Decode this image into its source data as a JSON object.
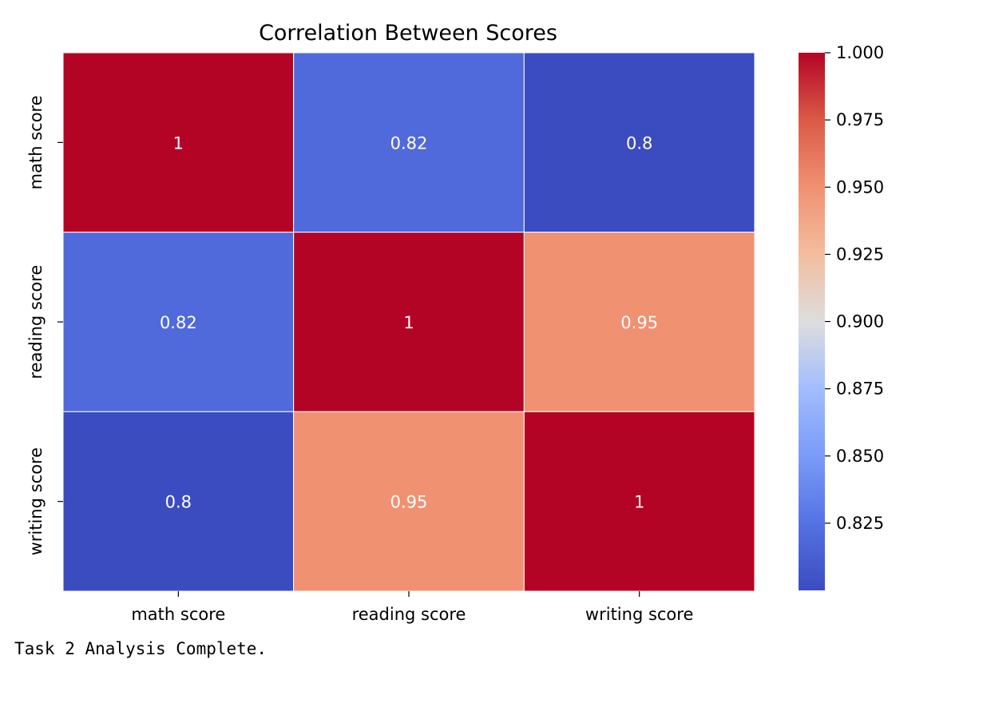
{
  "chart_data": {
    "type": "heatmap",
    "title": "Correlation Between Scores",
    "x_labels": [
      "math score",
      "reading score",
      "writing score"
    ],
    "y_labels": [
      "math score",
      "reading score",
      "writing score"
    ],
    "values": [
      [
        1.0,
        0.82,
        0.8
      ],
      [
        0.82,
        1.0,
        0.95
      ],
      [
        0.8,
        0.95,
        1.0
      ]
    ],
    "cell_labels": [
      [
        "1",
        "0.82",
        "0.8"
      ],
      [
        "0.82",
        "1",
        "0.95"
      ],
      [
        "0.8",
        "0.95",
        "1"
      ]
    ],
    "colormap": "coolwarm",
    "colorbar": {
      "range": [
        0.8,
        1.0
      ],
      "ticks": [
        0.825,
        0.85,
        0.875,
        0.9,
        0.925,
        0.95,
        0.975,
        1.0
      ],
      "tick_labels": [
        "0.825",
        "0.850",
        "0.875",
        "0.900",
        "0.925",
        "0.950",
        "0.975",
        "1.000"
      ]
    },
    "cell_border_color": "#ffffff",
    "annotation_color": "#ffffff"
  },
  "output_text": "Task 2 Analysis Complete."
}
